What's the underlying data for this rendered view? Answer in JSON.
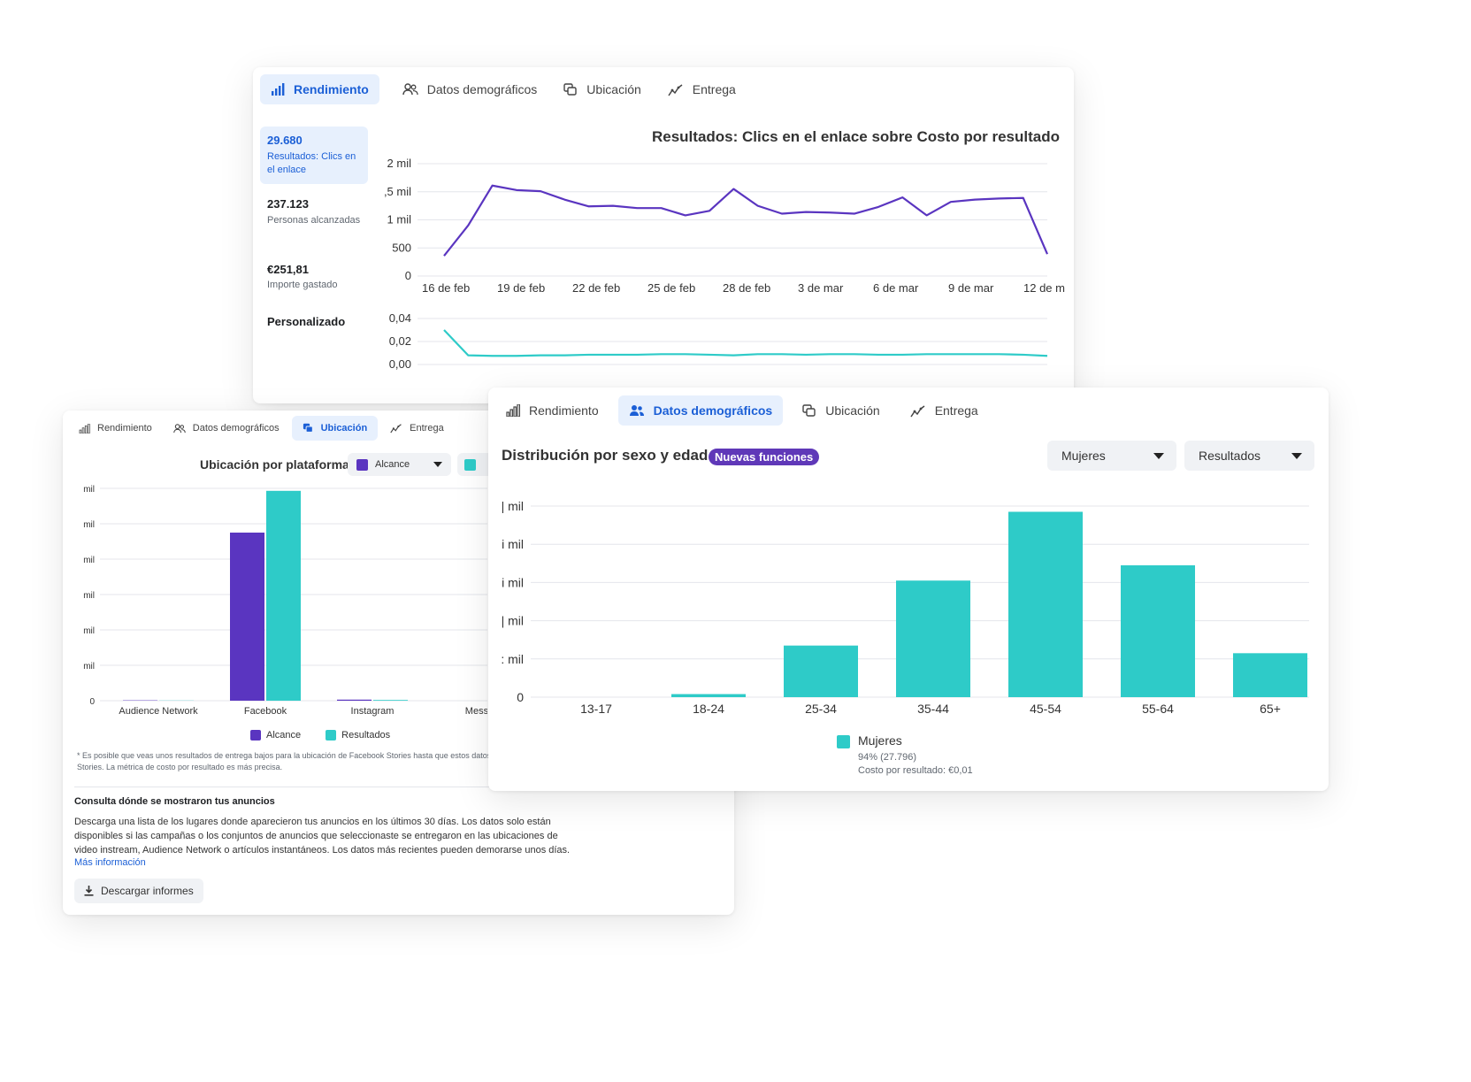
{
  "tab_labels": {
    "rendimiento": "Rendimiento",
    "demograficos": "Datos demográficos",
    "ubicacion": "Ubicación",
    "entrega": "Entrega"
  },
  "colors": {
    "purple": "#5a35c0",
    "teal": "#2ecbc8",
    "accent_blue": "#1b5fd6",
    "badge": "#5f38b8"
  },
  "icons": [
    "bar-chart-icon",
    "people-icon",
    "placement-icon",
    "delivery-icon",
    "download-icon",
    "caret-down-icon"
  ],
  "performance": {
    "active_tab": "Rendimiento",
    "metrics": [
      {
        "value": "29.680",
        "label": "Resultados: Clics en el enlace",
        "selected": true
      },
      {
        "value": "237.123",
        "label": "Personas alcanzadas"
      },
      {
        "value": "€251,81",
        "label": "Importe gastado"
      }
    ],
    "custom_label": "Personalizado",
    "chart_title": "Resultados: Clics en el enlace sobre Costo por resultado"
  },
  "placement": {
    "active_tab": "Ubicación",
    "title": "Ubicación por plataforma",
    "dropdown_value": "Alcance",
    "legend": [
      "Alcance",
      "Resultados"
    ],
    "footnote": "* Es posible que veas unos resultados de entrega bajos para la ubicación de Facebook Stories hasta que estos datos estén disponibles para todas las personas que usan Facebook Stories. La métrica de costo por resultado es más precisa.",
    "section_title": "Consulta dónde se mostraron tus anuncios",
    "section_body": "Descarga una lista de los lugares donde aparecieron tus anuncios en los últimos 30 días. Los datos solo están disponibles si las campañas o los conjuntos de anuncios que seleccionaste se entregaron en las ubicaciones de video instream, Audience Network o artículos instantáneos. Los datos más recientes pueden demorarse unos días.",
    "more_link": "Más información",
    "download_button": "Descargar informes"
  },
  "demographics": {
    "active_tab": "Datos demográficos",
    "title": "Distribución por sexo y edad",
    "badge": "Nuevas funciones",
    "dropdown_gender": "Mujeres",
    "dropdown_metric": "Resultados",
    "legend_name": "Mujeres",
    "legend_share": "94% (27.796)",
    "legend_cost": "Costo por resultado: €0,01"
  },
  "chart_data": [
    {
      "type": "line",
      "title": "Resultados: Clics en el enlace sobre Costo por resultado",
      "x": [
        "16 de feb",
        "17 de feb",
        "18 de feb",
        "19 de feb",
        "20 de feb",
        "21 de feb",
        "22 de feb",
        "23 de feb",
        "24 de feb",
        "25 de feb",
        "26 de feb",
        "27 de feb",
        "28 de feb",
        "1 de mar",
        "2 de mar",
        "3 de mar",
        "4 de mar",
        "5 de mar",
        "6 de mar",
        "7 de mar",
        "8 de mar",
        "9 de mar",
        "10 de mar",
        "11 de mar",
        "12 de mar",
        "13 de mar"
      ],
      "xticks": [
        "16 de feb",
        "19 de feb",
        "22 de feb",
        "25 de feb",
        "28 de feb",
        "3 de mar",
        "6 de mar",
        "9 de mar",
        "12 de m"
      ],
      "yticks": [
        "0",
        "500",
        "1 mil",
        ",5 mil",
        "2 mil"
      ],
      "ylim": [
        0,
        2000
      ],
      "series": [
        {
          "values": [
            360,
            900,
            1610,
            1530,
            1510,
            1360,
            1240,
            1250,
            1210,
            1210,
            1080,
            1160,
            1550,
            1250,
            1110,
            1140,
            1130,
            1110,
            1230,
            1400,
            1080,
            1320,
            1360,
            1380,
            1390,
            390
          ]
        },
        {
          "values": [
            0.03,
            0.008,
            0.0075,
            0.0075,
            0.008,
            0.008,
            0.0085,
            0.0085,
            0.0085,
            0.009,
            0.009,
            0.0085,
            0.008,
            0.009,
            0.009,
            0.0085,
            0.009,
            0.009,
            0.0085,
            0.0085,
            0.009,
            0.009,
            0.009,
            0.009,
            0.0085,
            0.0075
          ]
        }
      ],
      "secondary_yticks": [
        "0,00",
        "0,02",
        "0,04"
      ],
      "secondary_ylim": [
        0,
        0.04
      ]
    },
    {
      "type": "bar",
      "title": "Ubicación por plataforma",
      "categories": [
        "Audience Network",
        "Facebook",
        "Instagram",
        "Messe"
      ],
      "series": [
        {
          "name": "Alcance",
          "values": [
            0.1,
            47.5,
            0.3,
            0
          ]
        },
        {
          "name": "Resultados",
          "values": [
            0.05,
            59.3,
            0.2,
            0
          ]
        }
      ],
      "yticks": [
        "0",
        "mil",
        "mil",
        "mil",
        "mil",
        "mil",
        "mil"
      ],
      "ylim": [
        0,
        60
      ]
    },
    {
      "type": "bar",
      "title": "Distribución por sexo y edad",
      "categories": [
        "13-17",
        "18-24",
        "25-34",
        "35-44",
        "45-54",
        "55-64",
        "65+"
      ],
      "series": [
        {
          "name": "Mujeres",
          "values": [
            0,
            0.08,
            1.35,
            3.05,
            4.85,
            3.45,
            1.15
          ]
        }
      ],
      "yticks": [
        "0",
        ": mil",
        "| mil",
        "i mil",
        "i mil",
        "| mil"
      ],
      "ylim": [
        0,
        5
      ]
    }
  ]
}
